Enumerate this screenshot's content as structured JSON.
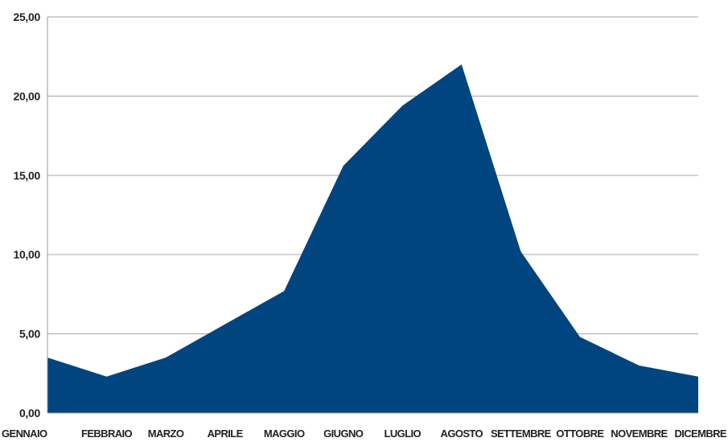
{
  "chart_data": {
    "type": "area",
    "title": "",
    "xlabel": "",
    "ylabel": "",
    "categories": [
      "GENNAIO",
      "FEBBRAIO",
      "MARZO",
      "APRILE",
      "MAGGIO",
      "GIUGNO",
      "LUGLIO",
      "AGOSTO",
      "SETTEMBRE",
      "OTTOBRE",
      "NOVEMBRE",
      "DICEMBRE"
    ],
    "series": [
      {
        "values": [
          3.5,
          2.3,
          3.5,
          5.6,
          7.7,
          15.6,
          19.4,
          22.0,
          10.2,
          4.8,
          3.0,
          2.3
        ]
      }
    ],
    "ylim": [
      0,
      25
    ],
    "yticks": [
      "0,00",
      "5,00",
      "10,00",
      "15,00",
      "20,00",
      "25,00"
    ],
    "grid": true,
    "legend": "none",
    "colors": {
      "area": "#00457f",
      "grid": "#b3b3b3",
      "axis": "#999999"
    }
  }
}
